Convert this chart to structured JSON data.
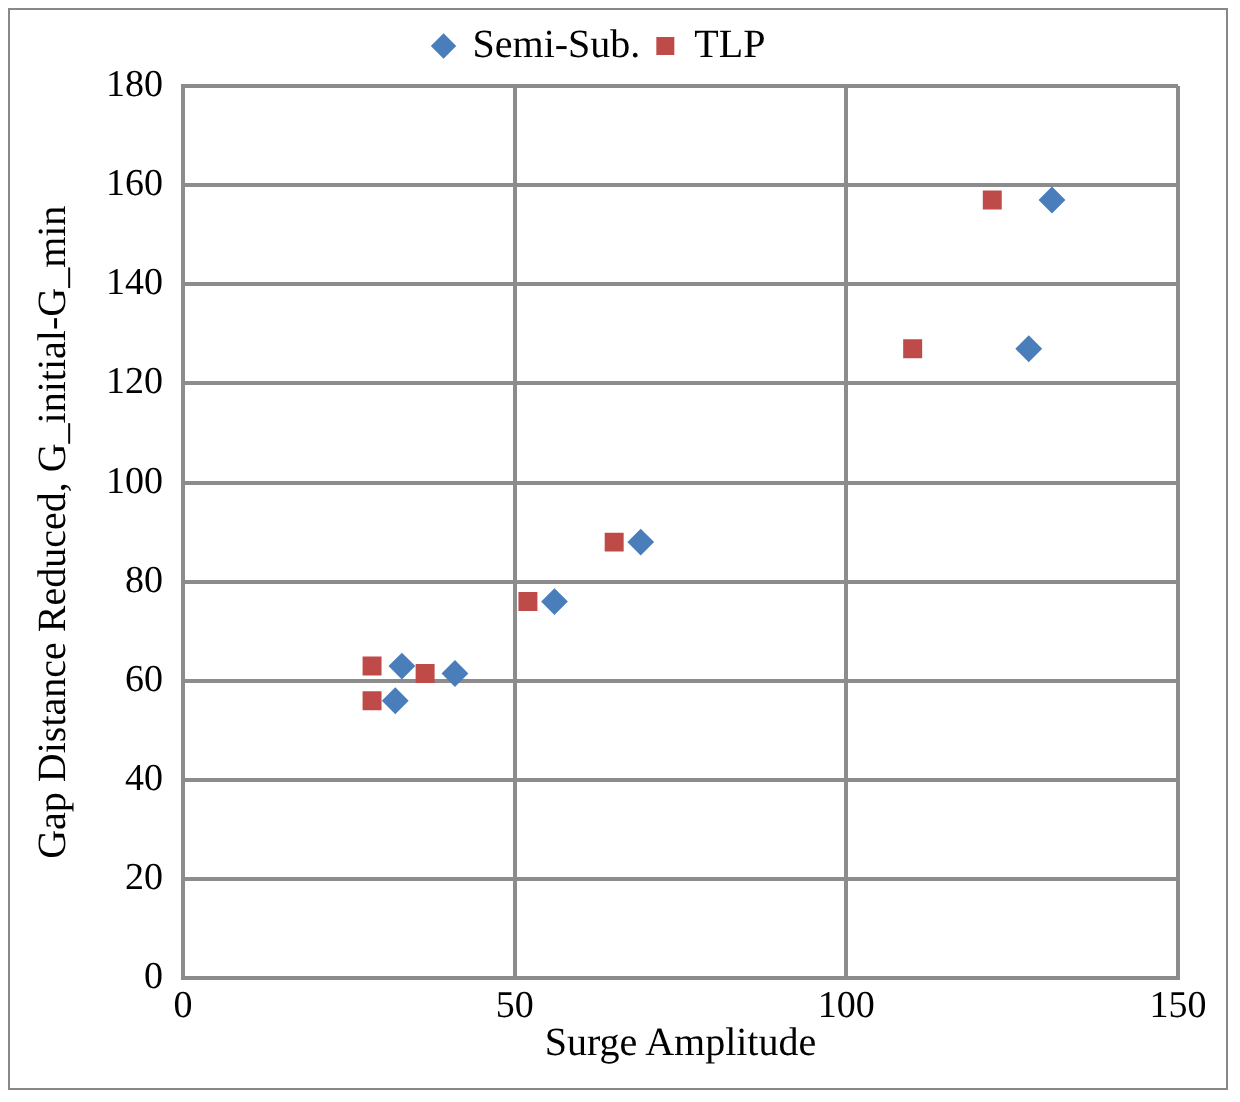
{
  "chart_data": {
    "type": "scatter",
    "xlabel": "Surge Amplitude",
    "ylabel": "Gap Distance Reduced, G_initial-G_min",
    "xlim": [
      0,
      150
    ],
    "xticks": [
      0,
      50,
      100,
      150
    ],
    "ylim": [
      0,
      180
    ],
    "yticks": [
      0,
      20,
      40,
      60,
      80,
      100,
      120,
      140,
      160,
      180
    ],
    "grid": true,
    "legend": "top",
    "series": [
      {
        "name": "Semi-Sub.",
        "color": "#4a7ebb",
        "marker": "diamond",
        "x": [
          33,
          32,
          41,
          56,
          69,
          127.5,
          131
        ],
        "values": [
          63,
          56,
          61.5,
          76,
          88,
          127,
          157
        ]
      },
      {
        "name": "TLP",
        "color": "#be4b48",
        "marker": "square",
        "x": [
          28.5,
          28.5,
          36.5,
          52,
          65,
          110,
          122
        ],
        "values": [
          63,
          56,
          61.5,
          76,
          88,
          127,
          157
        ]
      }
    ]
  }
}
